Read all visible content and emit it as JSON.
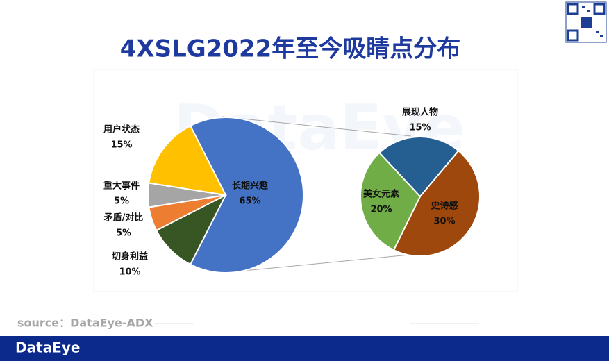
{
  "title": "4XSLG2022年至今吸睛点分布",
  "source": "source：DataEye-ADX",
  "brand": "DataEye",
  "watermark": "DataEye",
  "chart_data": [
    {
      "type": "pie",
      "categories": [
        "长期兴趣",
        "切身利益",
        "矛盾/对比",
        "重大事件",
        "用户状态"
      ],
      "values": [
        65,
        10,
        5,
        5,
        15
      ],
      "value_labels": [
        "65%",
        "10%",
        "5%",
        "5%",
        "15%"
      ],
      "colors": [
        "#4472c4",
        "#375623",
        "#ed7d31",
        "#a5a5a5",
        "#ffc000"
      ]
    },
    {
      "type": "pie",
      "categories": [
        "展现人物",
        "史诗感",
        "美女元素"
      ],
      "values": [
        15,
        30,
        20
      ],
      "value_labels": [
        "15%",
        "30%",
        "20%"
      ],
      "colors": [
        "#255e91",
        "#9e480e",
        "#70ad47"
      ]
    }
  ]
}
